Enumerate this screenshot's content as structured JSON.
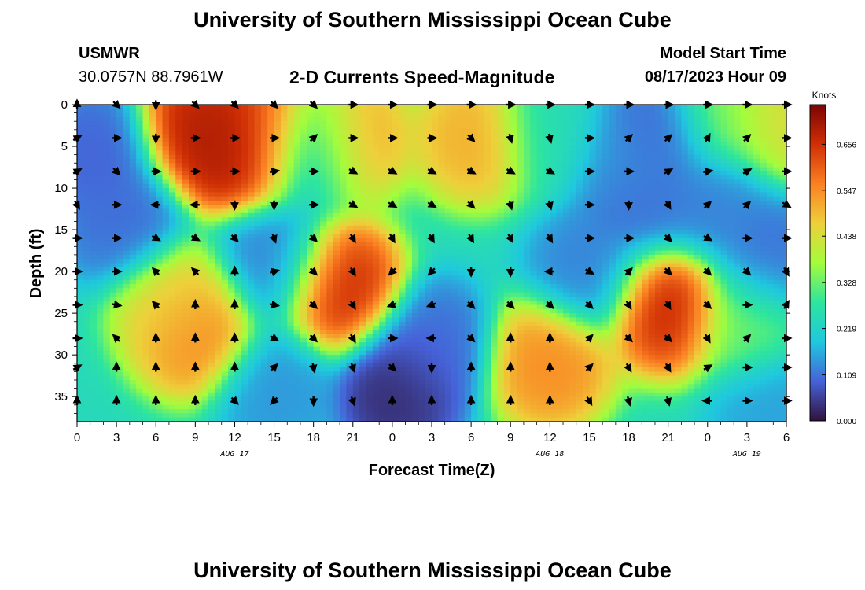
{
  "header": {
    "title": "University of Southern Mississippi Ocean Cube",
    "station": "USMWR",
    "coords": "30.0757N  88.7961W",
    "subtitle": "2-D Currents Speed-Magnitude",
    "model_label": "Model Start Time",
    "model_time": "08/17/2023 Hour 09",
    "footer_title": "University of Southern Mississippi Ocean Cube"
  },
  "colors": {
    "scale": [
      "#30123b",
      "#4662d8",
      "#1fc8de",
      "#2ee59d",
      "#a4fc3c",
      "#eecf3a",
      "#fb8022",
      "#d02f05",
      "#7a0403"
    ]
  },
  "chart_data": {
    "type": "heatmap",
    "title": "2-D Currents Speed-Magnitude",
    "xlabel": "Forecast Time(Z)",
    "ylabel": "Depth (ft)",
    "x_ticks": [
      "0",
      "3",
      "6",
      "9",
      "12",
      "15",
      "18",
      "21",
      "0",
      "3",
      "6",
      "9",
      "12",
      "15",
      "18",
      "21",
      "0",
      "3",
      "6"
    ],
    "x_hours": [
      0,
      3,
      6,
      9,
      12,
      15,
      18,
      21,
      24,
      27,
      30,
      33,
      36,
      39,
      42,
      45,
      48,
      51,
      54
    ],
    "date_labels": [
      {
        "text": "AUG 17",
        "hour": 12
      },
      {
        "text": "AUG 18",
        "hour": 36
      },
      {
        "text": "AUG 19",
        "hour": 51
      }
    ],
    "y_ticks": [
      "0",
      "5",
      "10",
      "15",
      "20",
      "25",
      "30",
      "35"
    ],
    "y_values": [
      0,
      5,
      10,
      15,
      20,
      25,
      30,
      35
    ],
    "xlim": [
      0,
      54
    ],
    "ylim": [
      0,
      38
    ],
    "y_inverted": true,
    "colorbar": {
      "label": "Knots",
      "ticks": [
        "0.000",
        "0.109",
        "0.219",
        "0.328",
        "0.438",
        "0.547",
        "0.656"
      ],
      "tick_values": [
        0.0,
        0.109,
        0.219,
        0.328,
        0.438,
        0.547,
        0.656
      ],
      "range": [
        0,
        0.75
      ]
    },
    "speed_hotspots": [
      {
        "hour": 1.5,
        "depth": 6,
        "speed": 0.09
      },
      {
        "hour": 3.5,
        "depth": 14,
        "speed": 0.1
      },
      {
        "hour": 9.5,
        "depth": 3,
        "speed": 0.7
      },
      {
        "hour": 12,
        "depth": 5,
        "speed": 0.72
      },
      {
        "hour": 14.5,
        "depth": 3,
        "speed": 0.64
      },
      {
        "hour": 9,
        "depth": 27,
        "speed": 0.58
      },
      {
        "hour": 7.5,
        "depth": 24,
        "speed": 0.45
      },
      {
        "hour": 15,
        "depth": 19,
        "speed": 0.12
      },
      {
        "hour": 15,
        "depth": 34,
        "speed": 0.14
      },
      {
        "hour": 17.8,
        "depth": 5,
        "speed": 0.12
      },
      {
        "hour": 20.5,
        "depth": 4,
        "speed": 0.55
      },
      {
        "hour": 20,
        "depth": 22,
        "speed": 0.68
      },
      {
        "hour": 24.5,
        "depth": 34,
        "speed": 0.02
      },
      {
        "hour": 27,
        "depth": 29,
        "speed": 0.1
      },
      {
        "hour": 30.5,
        "depth": 4,
        "speed": 0.52
      },
      {
        "hour": 36,
        "depth": 31,
        "speed": 0.56
      },
      {
        "hour": 36,
        "depth": 3,
        "speed": 0.25
      },
      {
        "hour": 39,
        "depth": 20,
        "speed": 0.12
      },
      {
        "hour": 42,
        "depth": 6,
        "speed": 0.14
      },
      {
        "hour": 44.5,
        "depth": 3,
        "speed": 0.08
      },
      {
        "hour": 43,
        "depth": 12,
        "speed": 0.1
      },
      {
        "hour": 45,
        "depth": 24,
        "speed": 0.69
      },
      {
        "hour": 49,
        "depth": 1,
        "speed": 0.36
      },
      {
        "hour": 48,
        "depth": 12,
        "speed": 0.12
      },
      {
        "hour": 52.5,
        "depth": 19,
        "speed": 0.1
      },
      {
        "hour": 51,
        "depth": 26,
        "speed": 0.34
      },
      {
        "hour": 54,
        "depth": 1,
        "speed": 0.45
      },
      {
        "hour": 53,
        "depth": 36,
        "speed": 0.15
      }
    ],
    "background_speed": 0.24,
    "vector_hours": [
      0,
      3,
      6,
      9,
      12,
      15,
      18,
      21,
      24,
      27,
      30,
      33,
      36,
      39,
      42,
      45,
      48,
      51,
      54
    ],
    "vector_depths": [
      0,
      4,
      8,
      12,
      16,
      20,
      24,
      28,
      31.5,
      35.5
    ],
    "vector_directions_deg": [
      [
        0,
        135,
        180,
        135,
        135,
        135,
        135,
        90,
        90,
        90,
        90,
        90,
        90,
        90,
        90,
        90,
        90,
        90,
        90
      ],
      [
        60,
        90,
        180,
        90,
        90,
        90,
        45,
        90,
        90,
        90,
        135,
        165,
        165,
        90,
        45,
        45,
        30,
        45,
        90
      ],
      [
        60,
        135,
        90,
        90,
        90,
        80,
        90,
        120,
        120,
        120,
        120,
        120,
        120,
        90,
        90,
        60,
        80,
        60,
        90
      ],
      [
        150,
        90,
        270,
        270,
        180,
        180,
        90,
        120,
        120,
        120,
        135,
        165,
        165,
        90,
        180,
        150,
        45,
        45,
        120
      ],
      [
        90,
        90,
        120,
        120,
        135,
        160,
        135,
        150,
        150,
        150,
        150,
        150,
        150,
        90,
        90,
        135,
        120,
        90,
        90
      ],
      [
        90,
        90,
        315,
        315,
        0,
        75,
        135,
        150,
        225,
        225,
        180,
        180,
        270,
        120,
        45,
        135,
        135,
        135,
        150
      ],
      [
        90,
        100,
        315,
        0,
        0,
        100,
        135,
        150,
        250,
        250,
        135,
        135,
        135,
        135,
        150,
        150,
        135,
        90,
        30
      ],
      [
        90,
        315,
        0,
        0,
        0,
        120,
        135,
        150,
        90,
        270,
        135,
        0,
        0,
        45,
        135,
        135,
        150,
        45,
        90
      ],
      [
        60,
        0,
        0,
        0,
        0,
        45,
        170,
        160,
        135,
        180,
        0,
        0,
        0,
        45,
        150,
        150,
        60,
        90,
        90
      ],
      [
        0,
        0,
        0,
        0,
        135,
        225,
        180,
        160,
        0,
        0,
        0,
        0,
        0,
        150,
        165,
        165,
        270,
        90,
        90
      ]
    ]
  }
}
